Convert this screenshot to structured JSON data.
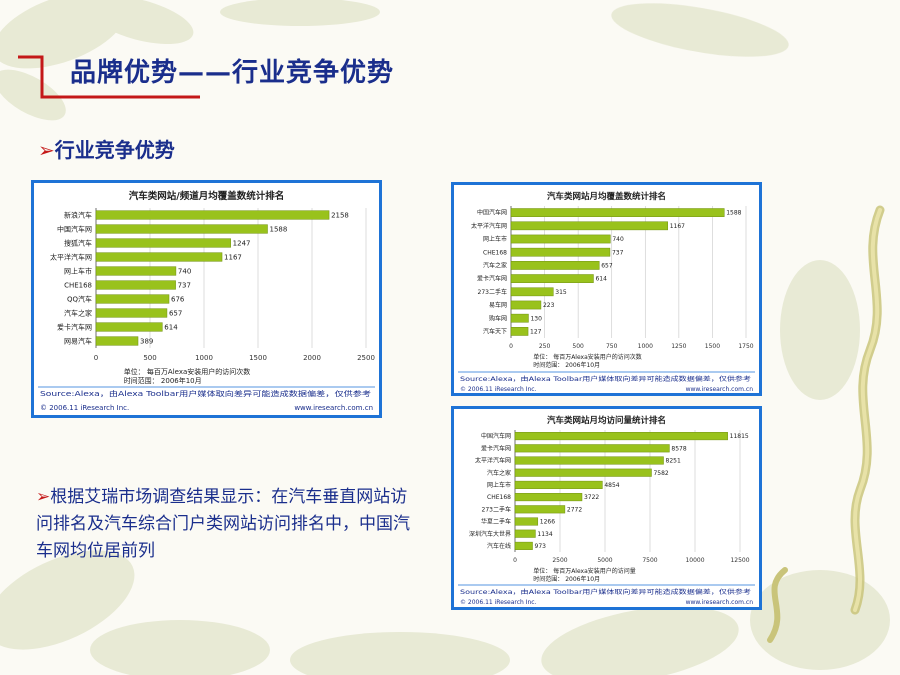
{
  "slide": {
    "title": "品牌优势——行业竞争优势",
    "subheading": "行业竞争优势",
    "body": "根据艾瑞市场调查结果显示：在汽车垂直网站访问排名及汽车综合门户类网站访问排名中，中国汽车网均位居前列"
  },
  "colors": {
    "bar": "#99c21c",
    "bar_edge": "#6e8f0c",
    "title": "#1a2e8c",
    "accent_red": "#c41818",
    "panel_border": "#1e73d6",
    "footer_text": "#1a2e8c"
  },
  "chart_data": [
    {
      "type": "bar",
      "orientation": "horizontal",
      "title": "汽车类网站/频道月均覆盖数统计排名",
      "categories": [
        "新浪汽车",
        "中国汽车网",
        "搜狐汽车",
        "太平洋汽车网",
        "网上车市",
        "CHE168",
        "QQ汽车",
        "汽车之家",
        "爱卡汽车网",
        "网易汽车"
      ],
      "values": [
        2158,
        1588,
        1247,
        1167,
        740,
        737,
        676,
        657,
        614,
        389
      ],
      "xlim": [
        0,
        2500
      ],
      "xticks": [
        0,
        500,
        1000,
        1500,
        2000,
        2500
      ],
      "unit_note": "单位： 每百万Alexa安装用户的访问次数",
      "time_note": "时间范围： 2006年10月",
      "source": "Source:Alexa，由Alexa Toolbar用户媒体取向差异可能造成数据偏差，仅供参考",
      "copyright": "© 2006.11 iResearch Inc.",
      "website": "www.iresearch.com.cn"
    },
    {
      "type": "bar",
      "orientation": "horizontal",
      "title": "汽车类网站月均覆盖数统计排名",
      "categories": [
        "中国汽车网",
        "太平洋汽车网",
        "网上车市",
        "CHE168",
        "汽车之家",
        "爱卡汽车网",
        "273二手车",
        "易车网",
        "购车网",
        "汽车天下"
      ],
      "values": [
        1588,
        1167,
        740,
        737,
        657,
        614,
        315,
        223,
        130,
        127
      ],
      "xlim": [
        0,
        1750
      ],
      "xticks": [
        0,
        250,
        500,
        750,
        1000,
        1250,
        1500,
        1750
      ],
      "unit_note": "单位： 每百万Alexa安装用户的访问次数",
      "time_note": "时间范围： 2006年10月",
      "source": "Source:Alexa，由Alexa Toolbar用户媒体取向差异可能造成数据偏差，仅供参考",
      "copyright": "© 2006.11 iResearch Inc.",
      "website": "www.iresearch.com.cn"
    },
    {
      "type": "bar",
      "orientation": "horizontal",
      "title": "汽车类网站月均访问量统计排名",
      "categories": [
        "中国汽车网",
        "爱卡汽车网",
        "太平洋汽车网",
        "汽车之家",
        "网上车市",
        "CHE168",
        "273二手车",
        "华夏二手车",
        "深圳汽车大世界",
        "汽车在线"
      ],
      "values": [
        11815,
        8578,
        8251,
        7582,
        4854,
        3722,
        2772,
        1266,
        1134,
        973
      ],
      "xlim": [
        0,
        12500
      ],
      "xticks": [
        0,
        2500,
        5000,
        7500,
        10000,
        12500
      ],
      "unit_note": "单位： 每百万Alexa安装用户的访问量",
      "time_note": "时间范围： 2006年10月",
      "source": "Source:Alexa，由Alexa Toolbar用户媒体取向差异可能造成数据偏差，仅供参考",
      "copyright": "© 2006.11 iResearch Inc.",
      "website": "www.iresearch.com.cn"
    }
  ]
}
